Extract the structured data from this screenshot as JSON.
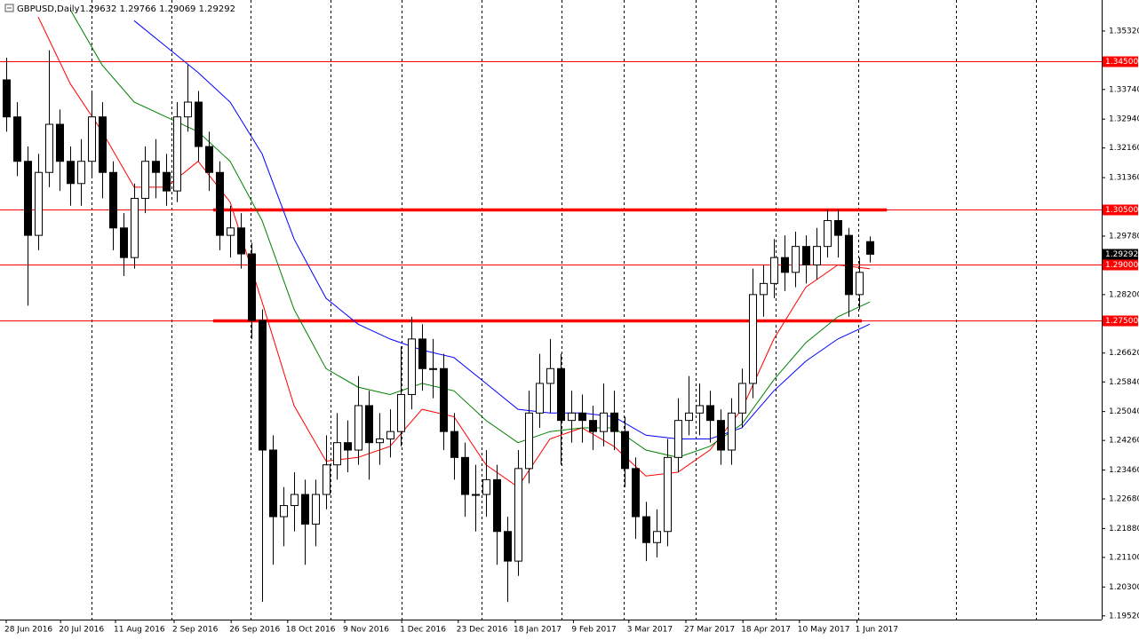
{
  "chart_data": {
    "type": "candlestick",
    "title": "GBPUSD,Daily",
    "ohlc_label": "1.29632 1.29766 1.29069 1.29292",
    "xlim": [
      -0.25,
      102.75
    ],
    "ylim": [
      1.1942,
      1.3611
    ],
    "xticks": [
      {
        "value": 0,
        "label": "28 Jun 2016"
      },
      {
        "value": 5.1,
        "label": "20 Jul 2016"
      },
      {
        "value": 10.25,
        "label": "11 Aug 2016"
      },
      {
        "value": 15.75,
        "label": "2 Sep 2016"
      },
      {
        "value": 21.1,
        "label": "26 Sep 2016"
      },
      {
        "value": 26.4,
        "label": "18 Oct 2016"
      },
      {
        "value": 31.75,
        "label": "9 Nov 2016"
      },
      {
        "value": 37.1,
        "label": "1 Dec 2016"
      },
      {
        "value": 42.4,
        "label": "23 Dec 2016"
      },
      {
        "value": 47.75,
        "label": "18 Jan 2017"
      },
      {
        "value": 53.2,
        "label": "9 Feb 2017"
      },
      {
        "value": 58.4,
        "label": "3 Mar 2017"
      },
      {
        "value": 63.75,
        "label": "27 Mar 2017"
      },
      {
        "value": 69.1,
        "label": "18 Apr 2017"
      },
      {
        "value": 74.4,
        "label": "10 May 2017"
      },
      {
        "value": 79.8,
        "label": "1 Jun 2017"
      }
    ],
    "yticks": [
      {
        "value": 1.3532,
        "label": "1.35320"
      },
      {
        "value": 1.3374,
        "label": "1.33740"
      },
      {
        "value": 1.3294,
        "label": "1.32940"
      },
      {
        "value": 1.3216,
        "label": "1.32160"
      },
      {
        "value": 1.3136,
        "label": "1.31360"
      },
      {
        "value": 1.2978,
        "label": "1.29780"
      },
      {
        "value": 1.282,
        "label": "1.28200"
      },
      {
        "value": 1.2662,
        "label": "1.26620"
      },
      {
        "value": 1.2584,
        "label": "1.25840"
      },
      {
        "value": 1.2504,
        "label": "1.25040"
      },
      {
        "value": 1.2426,
        "label": "1.24260"
      },
      {
        "value": 1.2346,
        "label": "1.23460"
      },
      {
        "value": 1.2268,
        "label": "1.22680"
      },
      {
        "value": 1.2188,
        "label": "1.21880"
      },
      {
        "value": 1.211,
        "label": "1.21100"
      },
      {
        "value": 1.203,
        "label": "1.20300"
      },
      {
        "value": 1.1952,
        "label": "1.19520"
      }
    ],
    "levels": [
      {
        "value": 1.345,
        "label": "1.34500",
        "color": "#ff0000"
      },
      {
        "value": 1.305,
        "label": "1.30500",
        "color": "#ff0000",
        "segment": [
          19.4,
          82.6
        ]
      },
      {
        "value": 1.29,
        "label": "1.29000",
        "color": "#ff0000"
      },
      {
        "value": 1.275,
        "label": "1.27500",
        "color": "#ff0000",
        "segment": [
          19.4,
          80.25
        ]
      }
    ],
    "last_price": {
      "value": 1.29292,
      "label": "1.29292",
      "color": "#000000"
    },
    "candles": {
      "up_color": "#ffffff",
      "down_color": "#000000",
      "edge_color": "#000000",
      "x": [
        0,
        1,
        2,
        3,
        4,
        5,
        6,
        7,
        8,
        9,
        10,
        11,
        12,
        13,
        14,
        15,
        16,
        17,
        18,
        19,
        20,
        21,
        22,
        23,
        24,
        25,
        26,
        27,
        28,
        29,
        30,
        31,
        32,
        33,
        34,
        35,
        36,
        37,
        38,
        39,
        40,
        41,
        42,
        43,
        44,
        45,
        46,
        47,
        48,
        49,
        50,
        51,
        52,
        53,
        54,
        55,
        56,
        57,
        58,
        59,
        60,
        61,
        62,
        63,
        64,
        65,
        66,
        67,
        68,
        69,
        70,
        71,
        72,
        73,
        74,
        75,
        76,
        77,
        78,
        79,
        80,
        81
      ],
      "open": [
        1.34,
        1.33,
        1.318,
        1.298,
        1.315,
        1.328,
        1.318,
        1.312,
        1.318,
        1.33,
        1.315,
        1.3,
        1.292,
        1.308,
        1.318,
        1.315,
        1.31,
        1.33,
        1.334,
        1.322,
        1.315,
        1.298,
        1.3,
        1.293,
        1.275,
        1.24,
        1.222,
        1.225,
        1.228,
        1.22,
        1.228,
        1.236,
        1.242,
        1.24,
        1.252,
        1.242,
        1.243,
        1.245,
        1.255,
        1.27,
        1.262,
        1.262,
        1.245,
        1.238,
        1.228,
        1.228,
        1.232,
        1.218,
        1.21,
        1.235,
        1.25,
        1.258,
        1.262,
        1.248,
        1.25,
        1.248,
        1.245,
        1.25,
        1.245,
        1.235,
        1.222,
        1.215,
        1.218,
        1.238,
        1.248,
        1.25,
        1.252,
        1.248,
        1.24,
        1.25,
        1.258,
        1.282,
        1.285,
        1.292,
        1.288,
        1.295,
        1.29,
        1.295,
        1.302,
        1.298,
        1.282,
        1.2963
      ],
      "high": [
        1.346,
        1.334,
        1.322,
        1.32,
        1.348,
        1.332,
        1.322,
        1.324,
        1.337,
        1.334,
        1.318,
        1.304,
        1.312,
        1.322,
        1.324,
        1.32,
        1.334,
        1.344,
        1.337,
        1.326,
        1.318,
        1.306,
        1.304,
        1.296,
        1.278,
        1.244,
        1.23,
        1.234,
        1.232,
        1.232,
        1.244,
        1.25,
        1.248,
        1.26,
        1.256,
        1.25,
        1.251,
        1.268,
        1.276,
        1.274,
        1.27,
        1.266,
        1.25,
        1.242,
        1.236,
        1.24,
        1.236,
        1.222,
        1.24,
        1.256,
        1.266,
        1.27,
        1.266,
        1.256,
        1.255,
        1.252,
        1.258,
        1.256,
        1.249,
        1.238,
        1.226,
        1.224,
        1.243,
        1.254,
        1.26,
        1.258,
        1.256,
        1.251,
        1.254,
        1.262,
        1.289,
        1.29,
        1.297,
        1.298,
        1.299,
        1.298,
        1.3,
        1.305,
        1.305,
        1.3,
        1.292,
        1.2977
      ],
      "low": [
        1.326,
        1.314,
        1.279,
        1.294,
        1.311,
        1.31,
        1.306,
        1.306,
        1.314,
        1.308,
        1.294,
        1.287,
        1.289,
        1.304,
        1.308,
        1.306,
        1.307,
        1.326,
        1.318,
        1.31,
        1.294,
        1.292,
        1.289,
        1.27,
        1.199,
        1.209,
        1.214,
        1.218,
        1.209,
        1.214,
        1.224,
        1.232,
        1.234,
        1.236,
        1.232,
        1.236,
        1.238,
        1.241,
        1.251,
        1.256,
        1.254,
        1.24,
        1.232,
        1.222,
        1.218,
        1.222,
        1.209,
        1.199,
        1.206,
        1.231,
        1.246,
        1.25,
        1.236,
        1.242,
        1.242,
        1.24,
        1.241,
        1.24,
        1.23,
        1.216,
        1.21,
        1.211,
        1.214,
        1.234,
        1.244,
        1.244,
        1.242,
        1.236,
        1.236,
        1.246,
        1.254,
        1.276,
        1.281,
        1.283,
        1.284,
        1.285,
        1.286,
        1.292,
        1.292,
        1.276,
        1.278,
        1.2907
      ],
      "close": [
        1.33,
        1.318,
        1.298,
        1.315,
        1.328,
        1.318,
        1.312,
        1.318,
        1.33,
        1.315,
        1.3,
        1.292,
        1.308,
        1.318,
        1.315,
        1.31,
        1.33,
        1.334,
        1.322,
        1.315,
        1.298,
        1.3,
        1.293,
        1.275,
        1.24,
        1.222,
        1.225,
        1.228,
        1.22,
        1.228,
        1.236,
        1.242,
        1.24,
        1.252,
        1.242,
        1.243,
        1.245,
        1.255,
        1.27,
        1.262,
        1.262,
        1.245,
        1.238,
        1.228,
        1.228,
        1.232,
        1.218,
        1.21,
        1.235,
        1.25,
        1.258,
        1.262,
        1.248,
        1.25,
        1.248,
        1.245,
        1.25,
        1.245,
        1.235,
        1.222,
        1.215,
        1.218,
        1.238,
        1.248,
        1.25,
        1.252,
        1.248,
        1.24,
        1.25,
        1.258,
        1.282,
        1.285,
        1.292,
        1.288,
        1.295,
        1.29,
        1.295,
        1.302,
        1.298,
        1.282,
        1.288,
        1.2929
      ]
    },
    "series": [
      {
        "color": "#ff0000",
        "x": [
          3,
          6,
          9,
          12,
          15,
          18,
          21,
          24,
          27,
          30,
          33,
          36,
          39,
          42,
          45,
          48,
          51,
          54,
          57,
          60,
          63,
          66,
          69,
          72,
          75,
          78,
          81
        ],
        "values": [
          1.357,
          1.339,
          1.326,
          1.311,
          1.311,
          1.318,
          1.307,
          1.28,
          1.252,
          1.237,
          1.238,
          1.241,
          1.251,
          1.249,
          1.236,
          1.23,
          1.243,
          1.246,
          1.241,
          1.233,
          1.234,
          1.24,
          1.251,
          1.27,
          1.284,
          1.29,
          1.289
        ]
      },
      {
        "color": "#008000",
        "x": [
          6,
          9,
          12,
          15,
          18,
          21,
          24,
          27,
          30,
          33,
          36,
          39,
          42,
          45,
          48,
          51,
          54,
          57,
          60,
          63,
          66,
          69,
          72,
          75,
          78,
          81
        ],
        "values": [
          1.359,
          1.344,
          1.334,
          1.33,
          1.326,
          1.318,
          1.302,
          1.278,
          1.262,
          1.257,
          1.255,
          1.258,
          1.256,
          1.248,
          1.242,
          1.245,
          1.246,
          1.246,
          1.24,
          1.238,
          1.241,
          1.247,
          1.259,
          1.269,
          1.276,
          1.28
        ]
      },
      {
        "color": "#0000ff",
        "x": [
          12,
          15,
          18,
          21,
          24,
          27,
          30,
          33,
          36,
          39,
          42,
          45,
          48,
          51,
          54,
          57,
          60,
          63,
          66,
          69,
          72,
          75,
          78,
          81
        ],
        "values": [
          1.356,
          1.349,
          1.342,
          1.334,
          1.32,
          1.297,
          1.281,
          1.274,
          1.27,
          1.267,
          1.265,
          1.258,
          1.251,
          1.25,
          1.25,
          1.249,
          1.244,
          1.243,
          1.243,
          1.246,
          1.256,
          1.264,
          1.27,
          1.274
        ]
      }
    ]
  }
}
